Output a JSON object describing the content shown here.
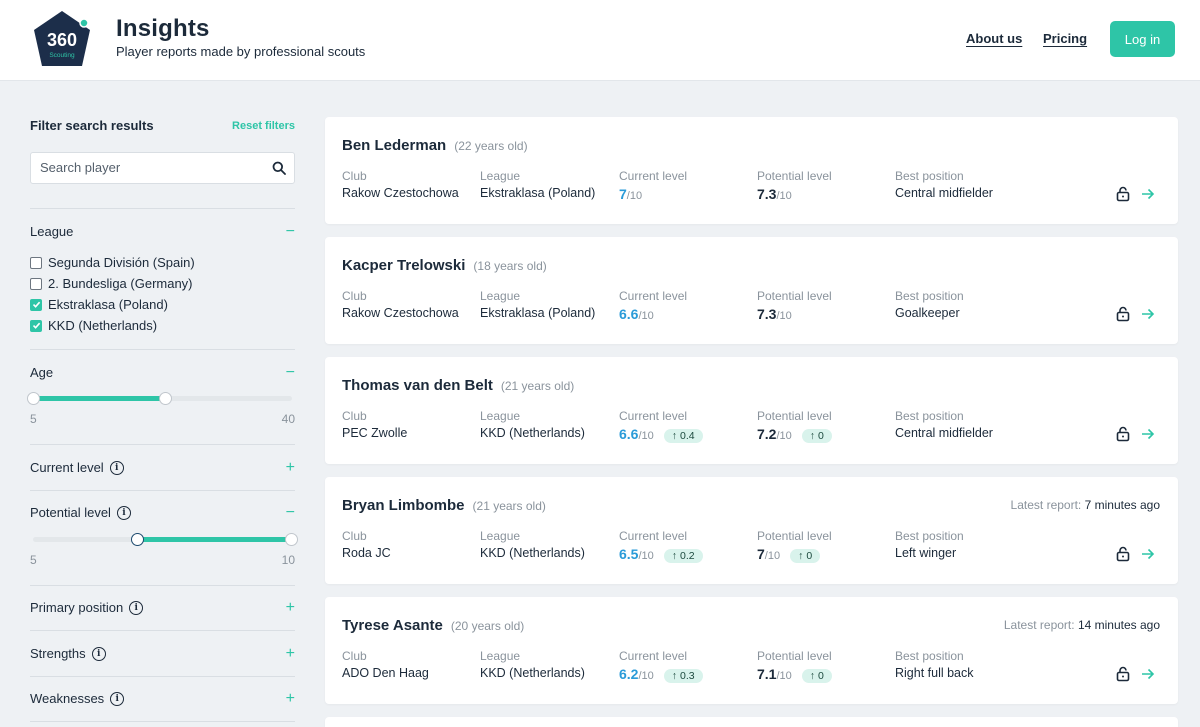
{
  "header": {
    "logo_text": "360",
    "logo_sub": "Scouting",
    "title": "Insights",
    "subtitle": "Player reports made by professional scouts",
    "nav": {
      "about": "About us",
      "pricing": "Pricing"
    },
    "login": "Log in"
  },
  "sidebar": {
    "title": "Filter search results",
    "reset": "Reset filters",
    "search_placeholder": "Search player",
    "league": {
      "title": "League",
      "options": [
        {
          "label": "Segunda División (Spain)",
          "checked": false
        },
        {
          "label": "2. Bundesliga (Germany)",
          "checked": false
        },
        {
          "label": "Ekstraklasa (Poland)",
          "checked": true
        },
        {
          "label": "KKD (Netherlands)",
          "checked": true
        }
      ]
    },
    "age": {
      "title": "Age",
      "min": "5",
      "max": "40",
      "low": 5,
      "high": 23
    },
    "current_level": {
      "title": "Current level"
    },
    "potential_level": {
      "title": "Potential level",
      "min": "5",
      "max": "10",
      "low": 6.8,
      "high": 10
    },
    "primary_position": {
      "title": "Primary position"
    },
    "strengths": {
      "title": "Strengths"
    },
    "weaknesses": {
      "title": "Weaknesses"
    }
  },
  "labels": {
    "club": "Club",
    "league": "League",
    "current": "Current level",
    "potential": "Potential level",
    "position": "Best position",
    "out_of": "/10",
    "latest": "Latest report:"
  },
  "players": [
    {
      "name": "Ben Lederman",
      "age": "(22 years old)",
      "club": "Rakow Czestochowa",
      "league": "Ekstraklasa (Poland)",
      "current": "7",
      "potential": "7.3",
      "position": "Central midfielder"
    },
    {
      "name": "Kacper Trelowski",
      "age": "(18 years old)",
      "club": "Rakow Czestochowa",
      "league": "Ekstraklasa (Poland)",
      "current": "6.6",
      "potential": "7.3",
      "position": "Goalkeeper"
    },
    {
      "name": "Thomas van den Belt",
      "age": "(21 years old)",
      "club": "PEC Zwolle",
      "league": "KKD (Netherlands)",
      "current": "6.6",
      "current_delta": "0.4",
      "potential": "7.2",
      "potential_delta": "0",
      "position": "Central midfielder"
    },
    {
      "name": "Bryan Limbombe",
      "age": "(21 years old)",
      "club": "Roda JC",
      "league": "KKD (Netherlands)",
      "current": "6.5",
      "current_delta": "0.2",
      "potential": "7",
      "potential_delta": "0",
      "position": "Left winger",
      "latest": "7 minutes ago"
    },
    {
      "name": "Tyrese Asante",
      "age": "(20 years old)",
      "club": "ADO Den Haag",
      "league": "KKD (Netherlands)",
      "current": "6.2",
      "current_delta": "0.3",
      "potential": "7.1",
      "potential_delta": "0",
      "position": "Right full back",
      "latest": "14 minutes ago"
    }
  ]
}
